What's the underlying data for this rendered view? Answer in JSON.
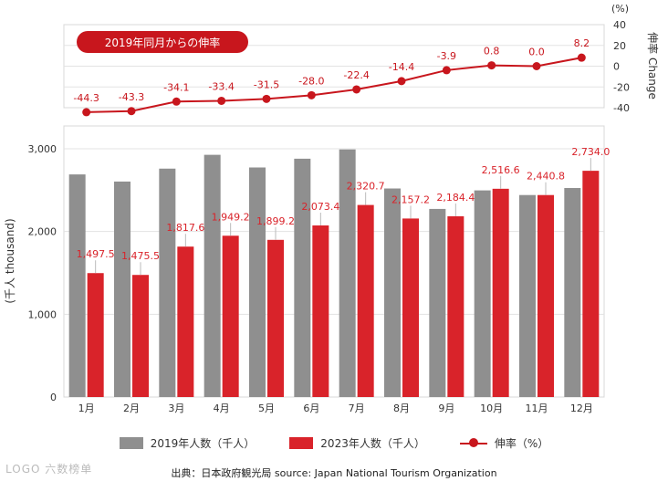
{
  "chart_data": [
    {
      "type": "line",
      "title": "2019年同月からの伸率",
      "ylabel": "伸率 Change",
      "unit": "(%)",
      "ylim": [
        -40,
        40
      ],
      "yticks": [
        "40",
        "20",
        "0",
        "-20",
        "-40"
      ],
      "categories": [
        "1月",
        "2月",
        "3月",
        "4月",
        "5月",
        "6月",
        "7月",
        "8月",
        "9月",
        "10月",
        "11月",
        "12月"
      ],
      "series": [
        {
          "name": "伸率（%）",
          "values": [
            -44.3,
            -43.3,
            -34.1,
            -33.4,
            -31.5,
            -28.0,
            -22.4,
            -14.4,
            -3.9,
            0.8,
            0.0,
            8.2
          ],
          "labels": [
            "-44.3",
            "-43.3",
            "-34.1",
            "-33.4",
            "-31.5",
            "-28.0",
            "-22.4",
            "-14.4",
            "-3.9",
            "0.8",
            "0.0",
            "8.2"
          ]
        }
      ],
      "grid": true
    },
    {
      "type": "bar",
      "ylabel": "(千人 thousand)",
      "ylim": [
        0,
        3000
      ],
      "yticks": [
        "3,000",
        "2,000",
        "1,000",
        "0"
      ],
      "categories": [
        "1月",
        "2月",
        "3月",
        "4月",
        "5月",
        "6月",
        "7月",
        "8月",
        "9月",
        "10月",
        "11月",
        "12月"
      ],
      "series": [
        {
          "name": "2019年人数（千人）",
          "values": [
            2690,
            2604,
            2760,
            2927,
            2774,
            2880,
            2992,
            2520,
            2273,
            2497,
            2441,
            2526
          ]
        },
        {
          "name": "2023年人数（千人）",
          "values": [
            1497.5,
            1475.5,
            1817.6,
            1949.2,
            1899.2,
            2073.4,
            2320.7,
            2157.2,
            2184.4,
            2516.6,
            2440.8,
            2734.0
          ],
          "labels": [
            "1,497.5",
            "1,475.5",
            "1,817.6",
            "1,949.2",
            "1,899.2",
            "2,073.4",
            "2,320.7",
            "2,157.2",
            "2,184.4",
            "2,516.6",
            "2,440.8",
            "2,734.0"
          ]
        }
      ],
      "grid": true,
      "legend": "bottom"
    }
  ],
  "legend": {
    "item1": "2019年人数（千人）",
    "item2": "2023年人数（千人）",
    "item3": "伸率（%）"
  },
  "source": "出典：日本政府観光局  source: Japan National Tourism Organization",
  "colors": {
    "gray": "#8f8f8f",
    "red": "#d9232a",
    "badge": "#c8161d",
    "line": "#c8161d"
  },
  "watermark": "LOGO 六数榜单"
}
